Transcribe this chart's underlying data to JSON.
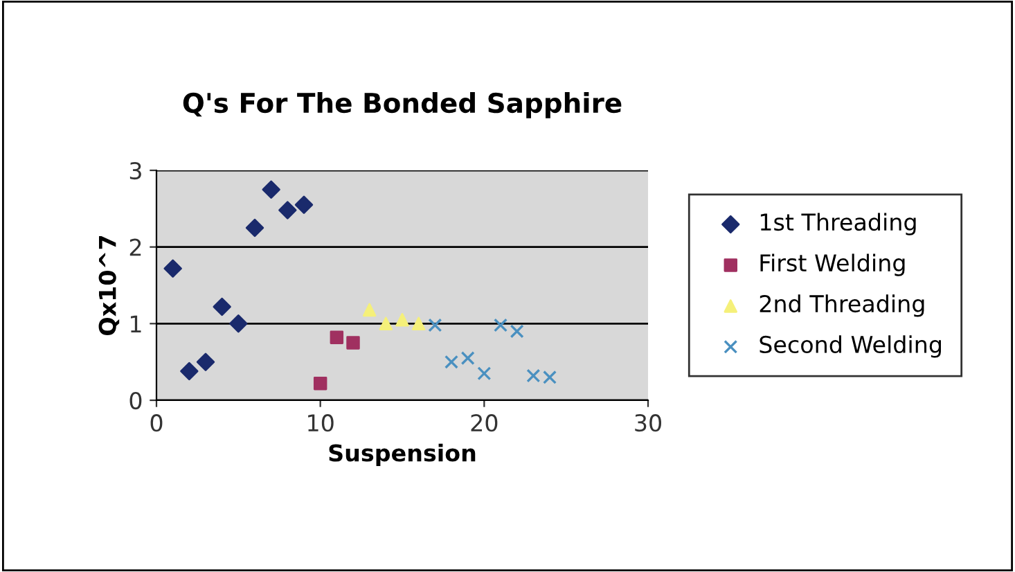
{
  "chart_data": {
    "type": "scatter",
    "title": "Q's For The Bonded Sapphire",
    "xlabel": "Suspension",
    "ylabel": "Qx10^7",
    "xlim": [
      0,
      30
    ],
    "xticks": [
      0,
      10,
      20,
      30
    ],
    "ylim": [
      0,
      3
    ],
    "yticks": [
      0,
      1,
      2,
      3
    ],
    "grid": "y",
    "legend": "right",
    "series": [
      {
        "name": "1st Threading",
        "color": "#1a2a6c",
        "marker": "diamond",
        "x": [
          1,
          2,
          3,
          4,
          5,
          6,
          7,
          8,
          9
        ],
        "values": [
          1.72,
          0.38,
          0.5,
          1.22,
          1.0,
          2.25,
          2.75,
          2.48,
          2.55
        ]
      },
      {
        "name": "First Welding",
        "color": "#a03060",
        "marker": "square",
        "x": [
          10,
          11,
          12
        ],
        "values": [
          0.22,
          0.82,
          0.75
        ]
      },
      {
        "name": "2nd Threading",
        "color": "#f5f07a",
        "marker": "triangle",
        "x": [
          13,
          14,
          15,
          16
        ],
        "values": [
          1.18,
          1.0,
          1.05,
          1.0
        ]
      },
      {
        "name": "Second Welding",
        "color": "#4a90c0",
        "marker": "cross",
        "x": [
          17,
          18,
          19,
          20,
          21,
          22,
          23,
          24
        ],
        "values": [
          0.98,
          0.5,
          0.55,
          0.35,
          0.98,
          0.9,
          0.32,
          0.3
        ]
      }
    ]
  }
}
